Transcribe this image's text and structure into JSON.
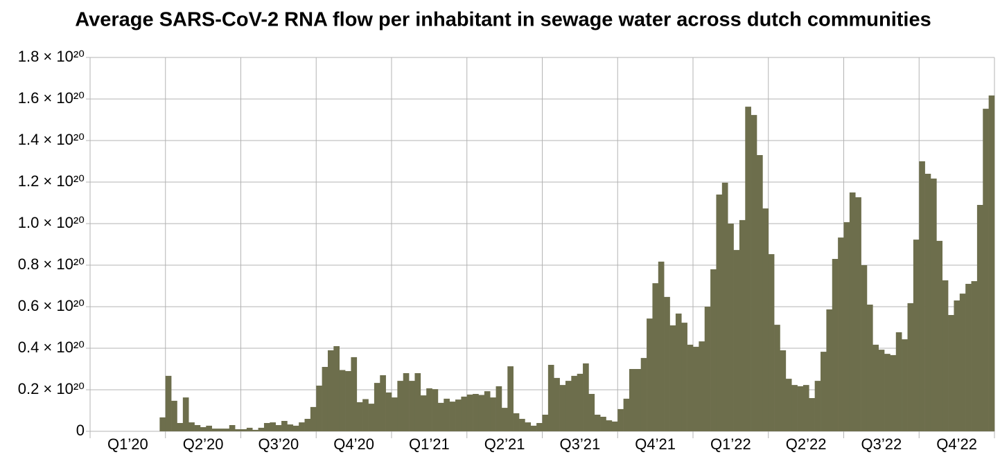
{
  "chart_data": {
    "type": "bar",
    "title": "Average SARS-CoV-2 RNA flow per inhabitant in sewage water across dutch communities",
    "categories": [
      "Q1’20",
      "Q2’20",
      "Q3’20",
      "Q4’20",
      "Q1’21",
      "Q2’21",
      "Q3’21",
      "Q4’21",
      "Q1’22",
      "Q2’22",
      "Q3’22",
      "Q4’22"
    ],
    "values": [
      [
        null,
        null,
        null,
        null,
        null,
        null,
        null,
        null,
        null,
        null,
        null,
        null,
        6.7e+18
      ],
      [
        2.67e+19,
        1.47e+19,
        4e+18,
        1.63e+19,
        4.3e+18,
        3e+18,
        2e+18,
        2.7e+18,
        1.3e+18,
        1.3e+18,
        1.3e+18,
        3e+18,
        1e+18
      ],
      [
        1e+18,
        1.7e+18,
        7e+17,
        1.7e+18,
        4e+18,
        4.3e+18,
        3e+18,
        5e+18,
        3.3e+18,
        2.7e+18,
        4.3e+18,
        6e+18,
        1.17e+19
      ],
      [
        2.2e+19,
        3.1e+19,
        3.9e+19,
        4.1e+19,
        2.95e+19,
        2.9e+19,
        3.57e+19,
        1.4e+19,
        1.55e+19,
        1.33e+19,
        2.33e+19,
        2.7e+19,
        1.87e+19
      ],
      [
        1.63e+19,
        2.43e+19,
        2.8e+19,
        2.43e+19,
        2.8e+19,
        1.73e+19,
        2.07e+19,
        2.03e+19,
        1.37e+19,
        1.57e+19,
        1.43e+19,
        1.53e+19,
        1.67e+19
      ],
      [
        1.77e+19,
        1.8e+19,
        1.75e+19,
        1.93e+19,
        1.63e+19,
        2.17e+19,
        1.13e+19,
        3.13e+19,
        8.7e+18,
        6e+18,
        4.3e+18,
        2.7e+18,
        4e+18
      ],
      [
        8e+18,
        3.2e+19,
        2.57e+19,
        2.23e+19,
        2.43e+19,
        2.67e+19,
        2.77e+19,
        3.27e+19,
        1.8e+19,
        8e+18,
        7e+18,
        5.3e+18,
        4.7e+18
      ],
      [
        1.07e+19,
        1.57e+19,
        3e+19,
        3e+19,
        3.53e+19,
        5.43e+19,
        7.13e+19,
        8.17e+19,
        6.47e+19,
        5.1e+19,
        5.67e+19,
        5.23e+19,
        4.17e+19
      ],
      [
        4.07e+19,
        4.33e+19,
        6e+19,
        7.8e+19,
        1.14e+20,
        1.197e+20,
        1e+20,
        8.73e+19,
        1.017e+20,
        1.563e+20,
        1.523e+20,
        1.33e+20,
        1.073e+20
      ],
      [
        8.53e+19,
        5.13e+19,
        3.9e+19,
        2.53e+19,
        2.23e+19,
        2.17e+19,
        2.23e+19,
        1.6e+19,
        2.43e+19,
        3.83e+19,
        5.87e+19,
        8.3e+19,
        9.33e+19
      ],
      [
        1.007e+20,
        1.15e+20,
        1.127e+20,
        8e+19,
        6.1e+19,
        4.17e+19,
        3.93e+19,
        3.73e+19,
        3.67e+19,
        4.77e+19,
        4.43e+19,
        6.17e+19,
        9.23e+19
      ],
      [
        1.3e+20,
        1.24e+20,
        1.217e+20,
        9.17e+19,
        7.27e+19,
        5.6e+19,
        6.3e+19,
        6.63e+19,
        7.1e+19,
        7.23e+19,
        1.09e+20,
        1.553e+20,
        1.617e+20
      ]
    ],
    "color": "#6d6e4c",
    "ylim": [
      0,
      1.8e+20
    ],
    "yticks": [
      0,
      {
        "value": 2e+19,
        "label": "0.2 × 10²⁰"
      },
      {
        "value": 4e+19,
        "label": "0.4 × 10²⁰"
      },
      {
        "value": 6e+19,
        "label": "0.6 × 10²⁰"
      },
      {
        "value": 8e+19,
        "label": "0.8 × 10²⁰"
      },
      {
        "value": 1e+20,
        "label": "1.0 × 10²⁰"
      },
      {
        "value": 1.2e+20,
        "label": "1.2 × 10²⁰"
      },
      {
        "value": 1.4e+20,
        "label": "1.4 × 10²⁰"
      },
      {
        "value": 1.6e+20,
        "label": "1.6 × 10²⁰"
      },
      {
        "value": 1.8e+20,
        "label": "1.8 × 10²⁰"
      }
    ],
    "grid": true
  }
}
